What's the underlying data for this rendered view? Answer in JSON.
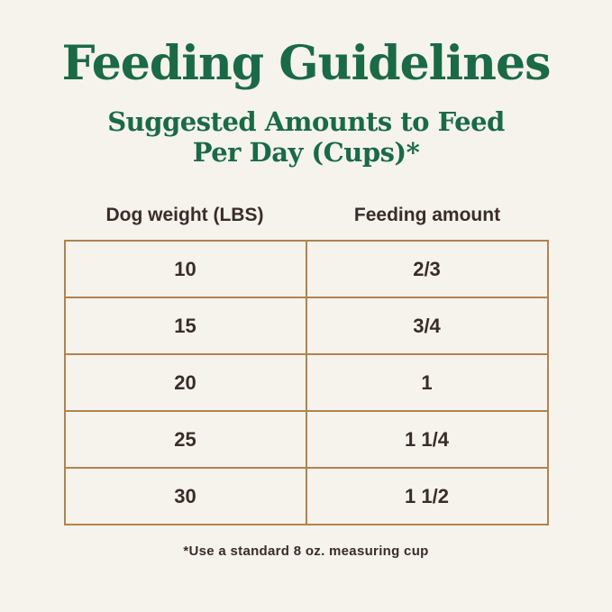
{
  "header": {
    "title": "Feeding Guidelines",
    "subtitle_line1": "Suggested Amounts to Feed",
    "subtitle_line2": "Per Day (Cups)*"
  },
  "table": {
    "headers": {
      "weight": "Dog weight (LBS)",
      "amount": "Feeding amount"
    },
    "rows": [
      {
        "weight": "10",
        "amount": "2/3"
      },
      {
        "weight": "15",
        "amount": "3/4"
      },
      {
        "weight": "20",
        "amount": "1"
      },
      {
        "weight": "25",
        "amount": "1 1/4"
      },
      {
        "weight": "30",
        "amount": "1 1/2"
      }
    ]
  },
  "footnote": "*Use a standard 8 oz. measuring cup",
  "colors": {
    "background": "#f5f3ec",
    "heading_green": "#1a6a45",
    "table_border": "#b2824f",
    "text_dark": "#3a2c27"
  },
  "chart_data": {
    "type": "table",
    "title": "Feeding Guidelines",
    "subtitle": "Suggested Amounts to Feed Per Day (Cups)*",
    "columns": [
      "Dog weight (LBS)",
      "Feeding amount"
    ],
    "rows": [
      [
        "10",
        "2/3"
      ],
      [
        "15",
        "3/4"
      ],
      [
        "20",
        "1"
      ],
      [
        "25",
        "1 1/4"
      ],
      [
        "30",
        "1 1/2"
      ]
    ],
    "footnote": "*Use a standard 8 oz. measuring cup"
  }
}
